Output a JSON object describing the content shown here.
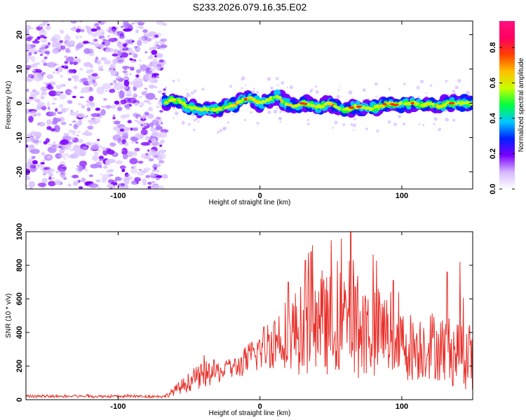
{
  "title": "S233.2026.079.16.35.E02",
  "chart_data": [
    {
      "type": "heatmap",
      "name": "spectrogram",
      "xlabel": "Height of straight line (km)",
      "ylabel": "Frequency (Hz)",
      "xlim": [
        -165,
        150
      ],
      "ylim": [
        -25,
        24
      ],
      "xticks": [
        -100,
        0,
        100
      ],
      "xtick_labels": [
        "-100",
        "0",
        "100"
      ],
      "yticks": [
        20,
        10,
        0,
        -10,
        -20
      ],
      "ytick_labels": [
        "20",
        "10",
        "0",
        "-10",
        "-20"
      ],
      "noise_region_x": [
        -165,
        -67
      ],
      "signal_region_x": [
        -67,
        150
      ],
      "signal_track": {
        "x": [
          -65,
          -58,
          -50,
          -42,
          -36,
          -30,
          -24,
          -18,
          -12,
          -6,
          0,
          6,
          12,
          18,
          24,
          30,
          36,
          42,
          48,
          54,
          60,
          66,
          72,
          78,
          84,
          90,
          96,
          102,
          108,
          114,
          120,
          126,
          132,
          138,
          144,
          150
        ],
        "y": [
          1,
          1,
          -1,
          -2,
          -1.5,
          -2,
          -1,
          -0.5,
          1,
          1.5,
          0,
          1,
          2,
          0,
          -1,
          0,
          -0.5,
          -1,
          0,
          -1,
          -2,
          -1,
          -1,
          -1.5,
          -1,
          0,
          -0.5,
          0,
          0,
          -0.5,
          0,
          -1,
          0,
          0,
          0,
          0
        ]
      },
      "colorbar": {
        "label": "Normalized spectral amplitude",
        "ticks": [
          0.0,
          0.2,
          0.4,
          0.6,
          0.8
        ],
        "tick_labels": [
          "0.0",
          "0.2",
          "0.4",
          "0.6",
          "0.8"
        ],
        "range": [
          0,
          0.95
        ],
        "colors": [
          "#ffffff",
          "#d6b8ff",
          "#7a00ff",
          "#0020ff",
          "#00c8ff",
          "#00ff40",
          "#c8ff00",
          "#ffc000",
          "#ff4000",
          "#ff0060",
          "#ff1080"
        ]
      }
    },
    {
      "type": "line",
      "name": "snr-plot",
      "xlabel": "Height of straight line (km)",
      "ylabel": "SNR (10 * v/v)",
      "xlim": [
        -165,
        150
      ],
      "ylim": [
        0,
        1000
      ],
      "xticks": [
        -100,
        0,
        100
      ],
      "xtick_labels": [
        "-100",
        "0",
        "100"
      ],
      "yticks": [
        0,
        200,
        400,
        600,
        800,
        1000
      ],
      "ytick_labels": [
        "0",
        "200",
        "400",
        "600",
        "800",
        "1000"
      ],
      "series_color": "#e8302a",
      "envelope": {
        "x": [
          -165,
          -67,
          -55,
          -45,
          -35,
          -25,
          -15,
          -5,
          5,
          15,
          20,
          25,
          30,
          40,
          50,
          60,
          64,
          70,
          80,
          90,
          100,
          110,
          120,
          130,
          140,
          150
        ],
        "center": [
          20,
          20,
          80,
          130,
          160,
          170,
          200,
          260,
          330,
          380,
          420,
          400,
          420,
          430,
          450,
          470,
          520,
          420,
          420,
          380,
          330,
          310,
          330,
          300,
          280,
          250
        ],
        "spread": [
          8,
          8,
          45,
          70,
          80,
          60,
          70,
          110,
          150,
          200,
          230,
          260,
          270,
          300,
          300,
          320,
          330,
          300,
          280,
          250,
          220,
          200,
          210,
          200,
          220,
          200
        ]
      },
      "peaks": [
        {
          "x": 64,
          "y": 1000
        },
        {
          "x": 36,
          "y": 880
        },
        {
          "x": 32,
          "y": 830
        },
        {
          "x": 20,
          "y": 700
        },
        {
          "x": 94,
          "y": 710
        },
        {
          "x": 132,
          "y": 760
        },
        {
          "x": 141,
          "y": 820
        }
      ]
    }
  ]
}
